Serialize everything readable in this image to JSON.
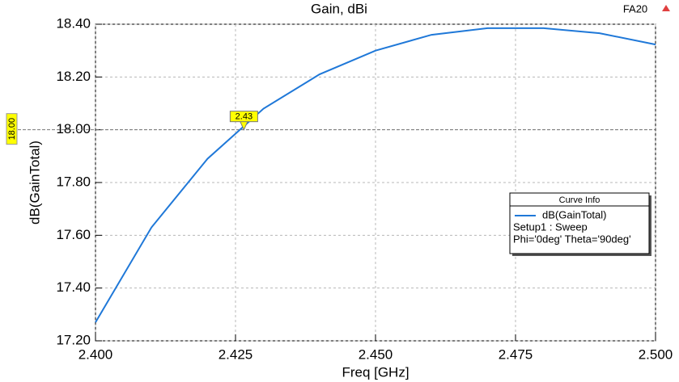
{
  "chart_data": {
    "type": "line",
    "title": "Gain, dBi",
    "corner_label": "FA20",
    "xlabel": "Freq [GHz]",
    "ylabel": "dB(GainTotal)",
    "x": [
      2.4,
      2.41,
      2.42,
      2.43,
      2.44,
      2.45,
      2.46,
      2.47,
      2.48,
      2.49,
      2.5
    ],
    "series": [
      {
        "name": "dB(GainTotal)",
        "color": "#1f78d8",
        "values": [
          17.27,
          17.63,
          17.89,
          18.08,
          18.21,
          18.3,
          18.36,
          18.385,
          18.385,
          18.366,
          18.323
        ]
      }
    ],
    "xlim": [
      2.4,
      2.5
    ],
    "xticks": [
      {
        "value": 2.4,
        "label": "2.400"
      },
      {
        "value": 2.425,
        "label": "2.425"
      },
      {
        "value": 2.45,
        "label": "2.450"
      },
      {
        "value": 2.475,
        "label": "2.475"
      },
      {
        "value": 2.5,
        "label": "2.500"
      }
    ],
    "ylim": [
      17.2,
      18.4
    ],
    "yticks": [
      {
        "value": 17.2,
        "label": "17.20"
      },
      {
        "value": 17.4,
        "label": "17.40"
      },
      {
        "value": 17.6,
        "label": "17.60"
      },
      {
        "value": 17.8,
        "label": "17.80"
      },
      {
        "value": 18.0,
        "label": "18.00"
      },
      {
        "value": 18.2,
        "label": "18.20"
      },
      {
        "value": 18.4,
        "label": "18.40"
      }
    ],
    "grid": true,
    "legend": {
      "title": "Curve Info",
      "lines": [
        "Setup1 : Sweep",
        "Phi='0deg' Theta='90deg'"
      ]
    },
    "reference_line": {
      "value": 18.0,
      "label": "18.00"
    },
    "markers": [
      {
        "x": 2.4265,
        "y": 18.0,
        "label": "2.43"
      }
    ]
  }
}
